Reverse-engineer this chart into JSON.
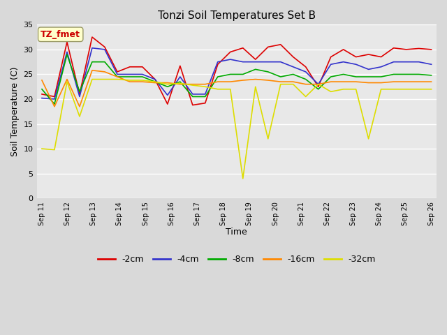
{
  "title": "Tonzi Soil Temperatures Set B",
  "xlabel": "Time",
  "ylabel": "Soil Temperature (C)",
  "annotation_label": "TZ_fmet",
  "annotation_color": "#cc0000",
  "annotation_bg": "#ffffcc",
  "annotation_border": "#999966",
  "ylim": [
    0,
    35
  ],
  "x_tick_labels": [
    "Sep 11",
    "Sep 12",
    "Sep 13",
    "Sep 14",
    "Sep 15",
    "Sep 16",
    "Sep 17",
    "Sep 18",
    "Sep 19",
    "Sep 20",
    "Sep 21",
    "Sep 22",
    "Sep 23",
    "Sep 24",
    "Sep 25",
    "Sep 26"
  ],
  "series": {
    "-2cm": {
      "color": "#dd0000",
      "data": [
        21.0,
        20.5,
        31.5,
        21.0,
        32.5,
        30.5,
        25.5,
        26.5,
        26.5,
        24.0,
        19.0,
        26.7,
        18.8,
        19.2,
        27.0,
        29.5,
        30.3,
        28.0,
        30.5,
        31.0,
        28.5,
        26.5,
        22.5,
        28.5,
        30.0,
        28.5,
        29.0,
        28.5,
        30.3,
        30.0,
        30.2,
        30.0
      ]
    },
    "-4cm": {
      "color": "#3333cc",
      "data": [
        20.2,
        20.0,
        29.5,
        20.5,
        30.3,
        30.0,
        25.0,
        25.0,
        25.0,
        24.0,
        20.8,
        24.5,
        21.0,
        21.0,
        27.5,
        28.0,
        27.5,
        27.5,
        27.5,
        27.5,
        26.5,
        25.5,
        23.0,
        27.0,
        27.5,
        27.0,
        26.0,
        26.5,
        27.5,
        27.5,
        27.5,
        27.0
      ]
    },
    "-8cm": {
      "color": "#00aa00",
      "data": [
        22.0,
        19.0,
        29.0,
        21.5,
        27.5,
        27.5,
        24.5,
        24.5,
        24.5,
        23.5,
        22.5,
        23.5,
        20.5,
        20.5,
        24.5,
        25.0,
        25.0,
        26.0,
        25.5,
        24.5,
        25.0,
        24.0,
        22.0,
        24.5,
        25.0,
        24.5,
        24.5,
        24.5,
        25.0,
        25.0,
        25.0,
        24.8
      ]
    },
    "-16cm": {
      "color": "#ff8800",
      "data": [
        23.8,
        18.5,
        24.0,
        18.5,
        25.8,
        25.5,
        24.5,
        23.5,
        23.5,
        23.3,
        23.3,
        23.0,
        23.0,
        23.0,
        23.5,
        23.5,
        23.8,
        24.0,
        23.8,
        23.5,
        23.5,
        23.0,
        23.0,
        23.5,
        23.5,
        23.5,
        23.3,
        23.3,
        23.5,
        23.5,
        23.5,
        23.5
      ]
    },
    "-32cm": {
      "color": "#dddd00",
      "data": [
        10.0,
        9.8,
        23.5,
        16.5,
        24.0,
        24.0,
        24.0,
        23.8,
        23.8,
        23.5,
        23.0,
        23.2,
        22.8,
        22.5,
        22.0,
        22.0,
        4.0,
        22.5,
        12.0,
        23.0,
        23.0,
        20.5,
        23.0,
        21.5,
        22.0,
        22.0,
        12.0,
        22.0,
        22.0,
        22.0,
        22.0,
        22.0
      ]
    }
  },
  "legend_order": [
    "-2cm",
    "-4cm",
    "-8cm",
    "-16cm",
    "-32cm"
  ],
  "bg_color": "#d9d9d9",
  "plot_bg": "#e8e8e8",
  "grid_color": "#ffffff",
  "n_points": 32,
  "n_days": 16
}
